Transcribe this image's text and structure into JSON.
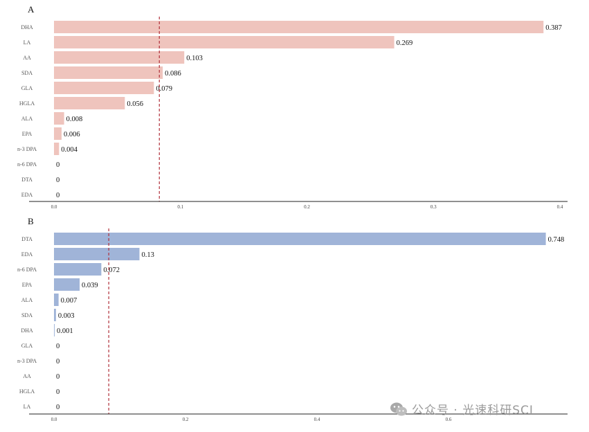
{
  "chart_data": [
    {
      "type": "bar",
      "orientation": "horizontal",
      "panel_label": "A",
      "categories": [
        "DHA",
        "LA",
        "AA",
        "SDA",
        "GLA",
        "HGLA",
        "ALA",
        "EPA",
        "n-3 DPA",
        "n-6 DPA",
        "DTA",
        "EDA"
      ],
      "values": [
        0.387,
        0.269,
        0.103,
        0.086,
        0.079,
        0.056,
        0.008,
        0.006,
        0.004,
        0,
        0,
        0
      ],
      "value_labels": [
        "0.387",
        "0.269",
        "0.103",
        "0.086",
        "0.079",
        "0.056",
        "0.008",
        "0.006",
        "0.004",
        "0",
        "0",
        "0"
      ],
      "xlim": [
        0,
        0.4
      ],
      "xticks": [
        0,
        0.1,
        0.2,
        0.3,
        0.4
      ],
      "xtick_labels": [
        "0.0",
        "0.1",
        "0.2",
        "0.3",
        "0.4"
      ],
      "threshold": 0.0833,
      "bar_color": "#efc4bd",
      "threshold_color": "#b0303a",
      "grid": false
    },
    {
      "type": "bar",
      "orientation": "horizontal",
      "panel_label": "B",
      "categories": [
        "DTA",
        "EDA",
        "n-6 DPA",
        "EPA",
        "ALA",
        "SDA",
        "DHA",
        "GLA",
        "n-3 DPA",
        "AA",
        "HGLA",
        "LA"
      ],
      "values": [
        0.748,
        0.13,
        0.072,
        0.039,
        0.007,
        0.003,
        0.001,
        0,
        0,
        0,
        0,
        0
      ],
      "value_labels": [
        "0.748",
        "0.13",
        "0.072",
        "0.039",
        "0.007",
        "0.003",
        "0.001",
        "0",
        "0",
        "0",
        "0",
        "0"
      ],
      "xlim": [
        0,
        0.78
      ],
      "xticks": [
        0,
        0.2,
        0.4,
        0.6
      ],
      "xtick_labels": [
        "0.0",
        "0.2",
        "0.4",
        "0.6"
      ],
      "threshold": 0.0833,
      "bar_color": "#a0b4d8",
      "threshold_color": "#b0303a",
      "grid": false
    }
  ],
  "watermark": {
    "text": "公众号 · 光速科研SCI",
    "icon": "wechat-icon"
  }
}
